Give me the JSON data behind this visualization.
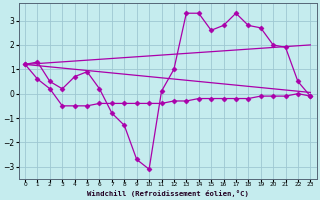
{
  "xlabel": "Windchill (Refroidissement éolien,°C)",
  "bg_color": "#c5ecee",
  "grid_color": "#9ec8d2",
  "line_color": "#aa00aa",
  "line_color2": "#880088",
  "x_min": -0.5,
  "x_max": 23.5,
  "y_min": -3.5,
  "y_max": 3.7,
  "yticks": [
    -3,
    -2,
    -1,
    0,
    1,
    2,
    3
  ],
  "xticks": [
    0,
    1,
    2,
    3,
    4,
    5,
    6,
    7,
    8,
    9,
    10,
    11,
    12,
    13,
    14,
    15,
    16,
    17,
    18,
    19,
    20,
    21,
    22,
    23
  ],
  "series1_x": [
    0,
    1,
    2,
    3,
    4,
    5,
    6,
    7,
    8,
    9,
    10,
    11,
    12,
    13,
    14,
    15,
    16,
    17,
    18,
    19,
    20,
    21,
    22,
    23
  ],
  "series1_y": [
    1.2,
    1.3,
    0.5,
    0.2,
    0.7,
    0.9,
    0.2,
    -0.8,
    -1.3,
    -2.7,
    -3.1,
    0.1,
    1.0,
    3.3,
    3.3,
    2.6,
    2.8,
    3.3,
    2.8,
    2.7,
    2.0,
    1.9,
    0.5,
    -0.1
  ],
  "series2_x": [
    0,
    1,
    2,
    3,
    4,
    5,
    6,
    7,
    8,
    9,
    10,
    11,
    12,
    13,
    14,
    15,
    16,
    17,
    18,
    19,
    20,
    21,
    22,
    23
  ],
  "series2_y": [
    1.2,
    0.6,
    0.2,
    -0.5,
    -0.5,
    -0.5,
    -0.4,
    -0.4,
    -0.4,
    -0.4,
    -0.4,
    -0.4,
    -0.3,
    -0.3,
    -0.2,
    -0.2,
    -0.2,
    -0.2,
    -0.2,
    -0.1,
    -0.1,
    -0.1,
    -0.0,
    -0.1
  ],
  "line3_x": [
    0,
    23
  ],
  "line3_y": [
    1.2,
    0.05
  ],
  "line4_x": [
    0,
    23
  ],
  "line4_y": [
    1.2,
    2.0
  ]
}
